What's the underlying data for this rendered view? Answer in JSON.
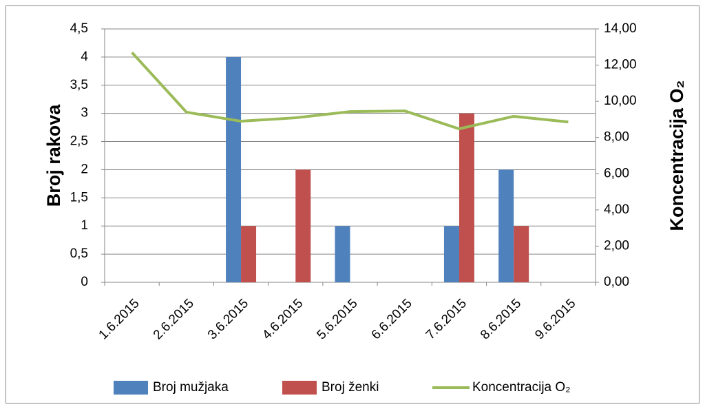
{
  "chart_data": {
    "type": "bar",
    "categories": [
      "1.6.2015",
      "2.6.2015",
      "3.6.2015",
      "4.6.2015",
      "5.6.2015",
      "6.6.2015",
      "7.6.2015",
      "8.6.2015",
      "9.6.2015"
    ],
    "y_label": "Broj rakova",
    "y2_label": "Koncentracija O₂",
    "series": [
      {
        "name": "Broj mužjaka",
        "type": "bar",
        "color": "#4f81bd",
        "values": [
          0,
          0,
          4,
          0,
          1,
          0,
          1,
          2,
          0
        ]
      },
      {
        "name": "Broj ženki",
        "type": "bar",
        "color": "#c0504d",
        "values": [
          0,
          0,
          1,
          2,
          0,
          0,
          3,
          1,
          0
        ]
      },
      {
        "name": "Koncentracija O₂",
        "type": "line",
        "axis": "y2",
        "color": "#9bbb59",
        "values": [
          12.7,
          9.4,
          8.9,
          9.09,
          9.43,
          9.47,
          8.48,
          9.17,
          8.86
        ]
      }
    ],
    "ylim": [
      0,
      4.5
    ],
    "yticks": [
      0,
      {
        "value": 0.5,
        "label": "0,5"
      },
      1,
      {
        "value": 1.5,
        "label": "1,5"
      },
      2,
      {
        "value": 2.5,
        "label": "2,5"
      },
      3,
      {
        "value": 3.5,
        "label": "3,5"
      },
      4,
      {
        "value": 4.5,
        "label": "4,5"
      }
    ],
    "y2lim": [
      0,
      14
    ],
    "y2ticks": [
      {
        "value": 0,
        "label": "0,00"
      },
      {
        "value": 2,
        "label": "2,00"
      },
      {
        "value": 4,
        "label": "4,00"
      },
      {
        "value": 6,
        "label": "6,00"
      },
      {
        "value": 8,
        "label": "8,00"
      },
      {
        "value": 10,
        "label": "10,00"
      },
      {
        "value": 12,
        "label": "12,00"
      },
      {
        "value": 14,
        "label": "14,00"
      }
    ],
    "grid": true,
    "legend": "bottom"
  }
}
